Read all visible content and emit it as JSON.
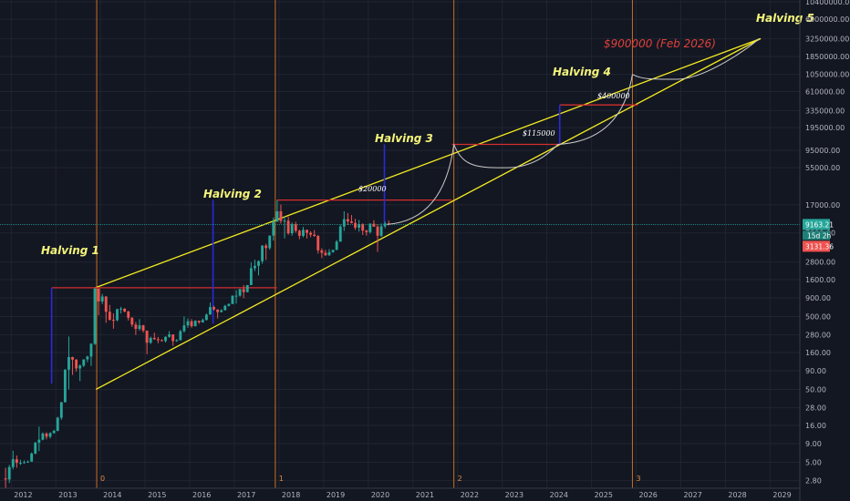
{
  "chart_data": {
    "type": "line",
    "y_scale": "log",
    "y_ticks": [
      "10400000.00",
      "6000000.00",
      "3250000.00",
      "1850000.00",
      "1050000.00",
      "610000.00",
      "335000.00",
      "195000.00",
      "95000.00",
      "55000.00",
      "17000.00",
      "9163.21",
      "3131.36",
      "2800.00",
      "1600.00",
      "900.00",
      "500.00",
      "280.00",
      "160.00",
      "90.00",
      "50.00",
      "28.00",
      "16.00",
      "9.00",
      "5.00",
      "2.80"
    ],
    "y_axis_labels": [
      "10400000.00",
      "6000000.00",
      "3250000.00",
      "1850000.00",
      "1050000.00",
      "610000.00",
      "335000.00",
      "195000.00",
      "95000.00",
      "55000.00",
      "17000.00",
      "7000.00",
      "2800.00",
      "1600.00",
      "900.00",
      "500.00",
      "280.00",
      "160.00",
      "90.00",
      "50.00",
      "28.00",
      "16.00",
      "9.00",
      "5.00",
      "2.80"
    ],
    "x_ticks": [
      "2012",
      "2013",
      "2014",
      "2015",
      "2016",
      "2017",
      "2018",
      "2019",
      "2020",
      "2021",
      "2022",
      "2023",
      "2024",
      "2025",
      "2026",
      "2027",
      "2028",
      "2029"
    ],
    "price_tags": {
      "current": "9163.21",
      "countdown": "15d 2h",
      "low": "3131.36"
    },
    "halvings": [
      {
        "label": "Halving 1",
        "date": "2012-11-28"
      },
      {
        "label": "Halving 2",
        "date": "2016-07-09"
      },
      {
        "label": "Halving 3",
        "date": "2020-05-11"
      },
      {
        "label": "Halving 4",
        "date": "2024-04"
      },
      {
        "label": "Halving 5",
        "date": "2028-10"
      }
    ],
    "cycle_markers": [
      {
        "label": "0",
        "date": "2013-12"
      },
      {
        "label": "1",
        "date": "2017-12"
      },
      {
        "label": "2",
        "date": "2021-12"
      },
      {
        "label": "3",
        "date": "2025-12"
      }
    ],
    "price_targets": [
      "$20000",
      "$115000",
      "$400000"
    ],
    "main_target": "$900000 (Feb 2026)",
    "colors": {
      "up": "#26a69a",
      "down": "#ef5350",
      "channel": "#f5ec1f",
      "target_line": "#d32f2f",
      "halving_bar": "#2a2ad8",
      "cycle_line": "#c96f1f",
      "projection": "#c9c9c9",
      "current_price_line": "#26a69a"
    },
    "price_series": [
      {
        "date": "2011-11",
        "open": 3.0,
        "high": 4.2,
        "low": 2.2,
        "close": 2.9
      },
      {
        "date": "2011-12",
        "open": 2.9,
        "high": 4.6,
        "low": 2.6,
        "close": 4.3
      },
      {
        "date": "2012-01",
        "open": 4.3,
        "high": 7.2,
        "low": 4.0,
        "close": 5.5
      },
      {
        "date": "2012-02",
        "open": 5.5,
        "high": 6.2,
        "low": 4.2,
        "close": 4.9
      },
      {
        "date": "2012-03",
        "open": 4.9,
        "high": 5.4,
        "low": 4.6,
        "close": 4.9
      },
      {
        "date": "2012-04",
        "open": 4.9,
        "high": 5.3,
        "low": 4.8,
        "close": 5.0
      },
      {
        "date": "2012-05",
        "open": 5.0,
        "high": 5.3,
        "low": 4.9,
        "close": 5.1
      },
      {
        "date": "2012-06",
        "open": 5.1,
        "high": 6.8,
        "low": 5.1,
        "close": 6.6
      },
      {
        "date": "2012-07",
        "open": 6.6,
        "high": 9.5,
        "low": 6.4,
        "close": 9.3
      },
      {
        "date": "2012-08",
        "open": 9.3,
        "high": 15.4,
        "low": 7.1,
        "close": 10.2
      },
      {
        "date": "2012-09",
        "open": 10.2,
        "high": 12.9,
        "low": 10.0,
        "close": 12.4
      },
      {
        "date": "2012-10",
        "open": 12.4,
        "high": 12.9,
        "low": 10.3,
        "close": 11.2
      },
      {
        "date": "2012-11",
        "open": 11.2,
        "high": 12.9,
        "low": 10.6,
        "close": 12.6
      },
      {
        "date": "2012-12",
        "open": 12.6,
        "high": 14.0,
        "low": 12.3,
        "close": 13.5
      },
      {
        "date": "2013-01",
        "open": 13.5,
        "high": 21.0,
        "low": 13.3,
        "close": 20.4
      },
      {
        "date": "2013-02",
        "open": 20.4,
        "high": 33.6,
        "low": 19.1,
        "close": 33.4
      },
      {
        "date": "2013-03",
        "open": 33.4,
        "high": 95.0,
        "low": 33.0,
        "close": 93.0
      },
      {
        "date": "2013-04",
        "open": 93.0,
        "high": 266.0,
        "low": 50.0,
        "close": 139.0
      },
      {
        "date": "2013-05",
        "open": 139.0,
        "high": 140.0,
        "low": 79.0,
        "close": 128.0
      },
      {
        "date": "2013-06",
        "open": 128.0,
        "high": 130.0,
        "low": 88.0,
        "close": 97.0
      },
      {
        "date": "2013-07",
        "open": 97.0,
        "high": 110.0,
        "low": 65.0,
        "close": 106.0
      },
      {
        "date": "2013-08",
        "open": 106.0,
        "high": 129.0,
        "low": 101.0,
        "close": 129.0
      },
      {
        "date": "2013-09",
        "open": 129.0,
        "high": 145.0,
        "low": 118.0,
        "close": 141.0
      },
      {
        "date": "2013-10",
        "open": 141.0,
        "high": 215.0,
        "low": 105.0,
        "close": 211.0
      },
      {
        "date": "2013-11",
        "open": 211.0,
        "high": 1240.0,
        "low": 203.0,
        "close": 1205.0
      },
      {
        "date": "2013-12",
        "open": 1205.0,
        "high": 1165.0,
        "low": 520.0,
        "close": 805.0
      },
      {
        "date": "2014-01",
        "open": 805.0,
        "high": 1020.0,
        "low": 740.0,
        "close": 940.0
      },
      {
        "date": "2014-02",
        "open": 940.0,
        "high": 950.0,
        "low": 410.0,
        "close": 580.0
      },
      {
        "date": "2014-03",
        "open": 580.0,
        "high": 720.0,
        "low": 440.0,
        "close": 450.0
      },
      {
        "date": "2014-04",
        "open": 450.0,
        "high": 550.0,
        "low": 340.0,
        "close": 445.0
      },
      {
        "date": "2014-05",
        "open": 445.0,
        "high": 640.0,
        "low": 430.0,
        "close": 630.0
      },
      {
        "date": "2014-06",
        "open": 630.0,
        "high": 680.0,
        "low": 550.0,
        "close": 640.0
      },
      {
        "date": "2014-07",
        "open": 640.0,
        "high": 650.0,
        "low": 570.0,
        "close": 585.0
      },
      {
        "date": "2014-08",
        "open": 585.0,
        "high": 600.0,
        "low": 440.0,
        "close": 480.0
      },
      {
        "date": "2014-09",
        "open": 480.0,
        "high": 490.0,
        "low": 360.0,
        "close": 387.0
      },
      {
        "date": "2014-10",
        "open": 387.0,
        "high": 420.0,
        "low": 280.0,
        "close": 338.0
      },
      {
        "date": "2014-11",
        "open": 338.0,
        "high": 460.0,
        "low": 318.0,
        "close": 378.0
      },
      {
        "date": "2014-12",
        "open": 378.0,
        "high": 385.0,
        "low": 300.0,
        "close": 320.0
      },
      {
        "date": "2015-01",
        "open": 320.0,
        "high": 320.0,
        "low": 152.0,
        "close": 218.0
      },
      {
        "date": "2015-02",
        "open": 218.0,
        "high": 265.0,
        "low": 210.0,
        "close": 254.0
      },
      {
        "date": "2015-03",
        "open": 254.0,
        "high": 300.0,
        "low": 240.0,
        "close": 244.0
      },
      {
        "date": "2015-04",
        "open": 244.0,
        "high": 262.0,
        "low": 215.0,
        "close": 236.0
      },
      {
        "date": "2015-05",
        "open": 236.0,
        "high": 245.0,
        "low": 228.0,
        "close": 230.0
      },
      {
        "date": "2015-06",
        "open": 230.0,
        "high": 267.0,
        "low": 220.0,
        "close": 263.0
      },
      {
        "date": "2015-07",
        "open": 263.0,
        "high": 315.0,
        "low": 255.0,
        "close": 284.0
      },
      {
        "date": "2015-08",
        "open": 284.0,
        "high": 285.0,
        "low": 198.0,
        "close": 230.0
      },
      {
        "date": "2015-09",
        "open": 230.0,
        "high": 245.0,
        "low": 225.0,
        "close": 236.0
      },
      {
        "date": "2015-10",
        "open": 236.0,
        "high": 330.0,
        "low": 236.0,
        "close": 314.0
      },
      {
        "date": "2015-11",
        "open": 314.0,
        "high": 500.0,
        "low": 300.0,
        "close": 378.0
      },
      {
        "date": "2015-12",
        "open": 378.0,
        "high": 470.0,
        "low": 350.0,
        "close": 430.0
      },
      {
        "date": "2016-01",
        "open": 430.0,
        "high": 460.0,
        "low": 350.0,
        "close": 368.0
      },
      {
        "date": "2016-02",
        "open": 368.0,
        "high": 445.0,
        "low": 365.0,
        "close": 437.0
      },
      {
        "date": "2016-03",
        "open": 437.0,
        "high": 440.0,
        "low": 395.0,
        "close": 416.0
      },
      {
        "date": "2016-04",
        "open": 416.0,
        "high": 470.0,
        "low": 412.0,
        "close": 448.0
      },
      {
        "date": "2016-05",
        "open": 448.0,
        "high": 550.0,
        "low": 440.0,
        "close": 531.0
      },
      {
        "date": "2016-06",
        "open": 531.0,
        "high": 775.0,
        "low": 530.0,
        "close": 673.0
      },
      {
        "date": "2016-07",
        "open": 673.0,
        "high": 700.0,
        "low": 605.0,
        "close": 624.0
      },
      {
        "date": "2016-08",
        "open": 624.0,
        "high": 625.0,
        "low": 470.0,
        "close": 574.0
      },
      {
        "date": "2016-09",
        "open": 574.0,
        "high": 630.0,
        "low": 570.0,
        "close": 609.0
      },
      {
        "date": "2016-10",
        "open": 609.0,
        "high": 720.0,
        "low": 605.0,
        "close": 700.0
      },
      {
        "date": "2016-11",
        "open": 700.0,
        "high": 755.0,
        "low": 685.0,
        "close": 742.0
      },
      {
        "date": "2016-12",
        "open": 742.0,
        "high": 975.0,
        "low": 740.0,
        "close": 963.0
      },
      {
        "date": "2017-01",
        "open": 963.0,
        "high": 1150.0,
        "low": 750.0,
        "close": 965.0
      },
      {
        "date": "2017-02",
        "open": 965.0,
        "high": 1200.0,
        "low": 935.0,
        "close": 1190.0
      },
      {
        "date": "2017-03",
        "open": 1190.0,
        "high": 1350.0,
        "low": 890.0,
        "close": 1080.0
      },
      {
        "date": "2017-04",
        "open": 1080.0,
        "high": 1350.0,
        "low": 1070.0,
        "close": 1350.0
      },
      {
        "date": "2017-05",
        "open": 1350.0,
        "high": 2760.0,
        "low": 1350.0,
        "close": 2300.0
      },
      {
        "date": "2017-06",
        "open": 2300.0,
        "high": 3000.0,
        "low": 2100.0,
        "close": 2480.0
      },
      {
        "date": "2017-07",
        "open": 2480.0,
        "high": 2950.0,
        "low": 1830.0,
        "close": 2870.0
      },
      {
        "date": "2017-08",
        "open": 2870.0,
        "high": 4750.0,
        "low": 2650.0,
        "close": 4700.0
      },
      {
        "date": "2017-09",
        "open": 4700.0,
        "high": 4980.0,
        "low": 2970.0,
        "close": 4340.0
      },
      {
        "date": "2017-10",
        "open": 4340.0,
        "high": 6470.0,
        "low": 4110.0,
        "close": 6450.0
      },
      {
        "date": "2017-11",
        "open": 6450.0,
        "high": 11400.0,
        "low": 5500.0,
        "close": 10000.0
      },
      {
        "date": "2017-12",
        "open": 10000.0,
        "high": 19800.0,
        "low": 10000.0,
        "close": 13860.0
      },
      {
        "date": "2018-01",
        "open": 13860.0,
        "high": 17200.0,
        "low": 9400.0,
        "close": 10220.0
      },
      {
        "date": "2018-02",
        "open": 10220.0,
        "high": 11750.0,
        "low": 5900.0,
        "close": 10320.0
      },
      {
        "date": "2018-03",
        "open": 10320.0,
        "high": 11700.0,
        "low": 6600.0,
        "close": 6930.0
      },
      {
        "date": "2018-04",
        "open": 6930.0,
        "high": 9750.0,
        "low": 6430.0,
        "close": 9240.0
      },
      {
        "date": "2018-05",
        "open": 9240.0,
        "high": 9960.0,
        "low": 7060.0,
        "close": 7490.0
      },
      {
        "date": "2018-06",
        "open": 7490.0,
        "high": 7770.0,
        "low": 5750.0,
        "close": 6390.0
      },
      {
        "date": "2018-07",
        "open": 6390.0,
        "high": 8480.0,
        "low": 6070.0,
        "close": 7730.0
      },
      {
        "date": "2018-08",
        "open": 7730.0,
        "high": 7760.0,
        "low": 5880.0,
        "close": 7030.0
      },
      {
        "date": "2018-09",
        "open": 7030.0,
        "high": 7400.0,
        "low": 6130.0,
        "close": 6630.0
      },
      {
        "date": "2018-10",
        "open": 6630.0,
        "high": 7680.0,
        "low": 6200.0,
        "close": 6370.0
      },
      {
        "date": "2018-11",
        "open": 6370.0,
        "high": 6580.0,
        "low": 3650.0,
        "close": 4040.0
      },
      {
        "date": "2018-12",
        "open": 4040.0,
        "high": 4310.0,
        "low": 3160.0,
        "close": 3740.0
      },
      {
        "date": "2019-01",
        "open": 3740.0,
        "high": 4110.0,
        "low": 3400.0,
        "close": 3460.0
      },
      {
        "date": "2019-02",
        "open": 3460.0,
        "high": 4200.0,
        "low": 3400.0,
        "close": 3820.0
      },
      {
        "date": "2019-03",
        "open": 3820.0,
        "high": 4110.0,
        "low": 3740.0,
        "close": 4100.0
      },
      {
        "date": "2019-04",
        "open": 4100.0,
        "high": 5600.0,
        "low": 4070.0,
        "close": 5320.0
      },
      {
        "date": "2019-05",
        "open": 5320.0,
        "high": 9100.0,
        "low": 5300.0,
        "close": 8570.0
      },
      {
        "date": "2019-06",
        "open": 8570.0,
        "high": 13880.0,
        "low": 7450.0,
        "close": 10820.0
      },
      {
        "date": "2019-07",
        "open": 10820.0,
        "high": 13140.0,
        "low": 9060.0,
        "close": 10090.0
      },
      {
        "date": "2019-08",
        "open": 10090.0,
        "high": 12320.0,
        "low": 9460.0,
        "close": 9600.0
      },
      {
        "date": "2019-09",
        "open": 9600.0,
        "high": 10950.0,
        "low": 7710.0,
        "close": 8290.0
      },
      {
        "date": "2019-10",
        "open": 8290.0,
        "high": 10540.0,
        "low": 7300.0,
        "close": 9150.0
      },
      {
        "date": "2019-11",
        "open": 9150.0,
        "high": 9500.0,
        "low": 6560.0,
        "close": 7540.0
      },
      {
        "date": "2019-12",
        "open": 7540.0,
        "high": 7740.0,
        "low": 6430.0,
        "close": 7190.0
      },
      {
        "date": "2020-01",
        "open": 7190.0,
        "high": 9570.0,
        "low": 6850.0,
        "close": 9350.0
      },
      {
        "date": "2020-02",
        "open": 9350.0,
        "high": 10500.0,
        "low": 8500.0,
        "close": 8540.0
      },
      {
        "date": "2020-03",
        "open": 8540.0,
        "high": 9190.0,
        "low": 3850.0,
        "close": 6410.0
      },
      {
        "date": "2020-04",
        "open": 6410.0,
        "high": 9460.0,
        "low": 6150.0,
        "close": 8630.0
      },
      {
        "date": "2020-05",
        "open": 8630.0,
        "high": 10070.0,
        "low": 8100.0,
        "close": 9450.0
      },
      {
        "date": "2020-06",
        "open": 9450.0,
        "high": 10380.0,
        "low": 8900.0,
        "close": 9163.21
      }
    ],
    "channel": {
      "upper": [
        {
          "date": "2013-11-20",
          "price": 1240
        },
        {
          "date": "2028-10-15",
          "price": 3250000
        }
      ],
      "lower": [
        {
          "date": "2013-11-25",
          "price": 50
        },
        {
          "date": "2028-10-15",
          "price": 3250000
        }
      ]
    },
    "target_lines": [
      {
        "from": "2012-11-28",
        "to": "2017-12-15",
        "price": 1240
      },
      {
        "from": "2017-12-15",
        "to": "2021-11-15",
        "price": 19800
      },
      {
        "from": "2021-11-15",
        "to": "2024-04-15",
        "price": 115000
      },
      {
        "from": "2024-04-15",
        "to": "2026-01-15",
        "price": 400000
      }
    ],
    "halving_bars": [
      {
        "date": "2012-11-28",
        "low": 60,
        "high": 1240
      },
      {
        "date": "2016-07-09",
        "low": 400,
        "high": 19800
      },
      {
        "date": "2020-05-11",
        "low": 8600,
        "high": 115000
      },
      {
        "date": "2024-04-15",
        "low": 115000,
        "high": 400000
      }
    ],
    "projection_arcs": [
      {
        "from": {
          "date": "2020-06",
          "price": 9163
        },
        "peak": {
          "date": "2021-12",
          "price": 115000
        }
      },
      {
        "peak": {
          "date": "2021-12",
          "price": 115000
        },
        "trough": {
          "date": "2023-02",
          "price": 55000
        },
        "to": {
          "date": "2024-04",
          "price": 115000
        }
      },
      {
        "from": {
          "date": "2024-04",
          "price": 115000
        },
        "peak": {
          "date": "2025-12",
          "price": 1050000
        }
      },
      {
        "peak": {
          "date": "2025-12",
          "price": 1050000
        },
        "trough": {
          "date": "2026-12",
          "price": 900000
        },
        "to": {
          "date": "2028-10",
          "price": 3250000
        }
      }
    ],
    "ylim": [
      2.2,
      11000000
    ],
    "xlim": [
      "2011-10",
      "2029-09"
    ],
    "grid": true,
    "legend": "none"
  }
}
